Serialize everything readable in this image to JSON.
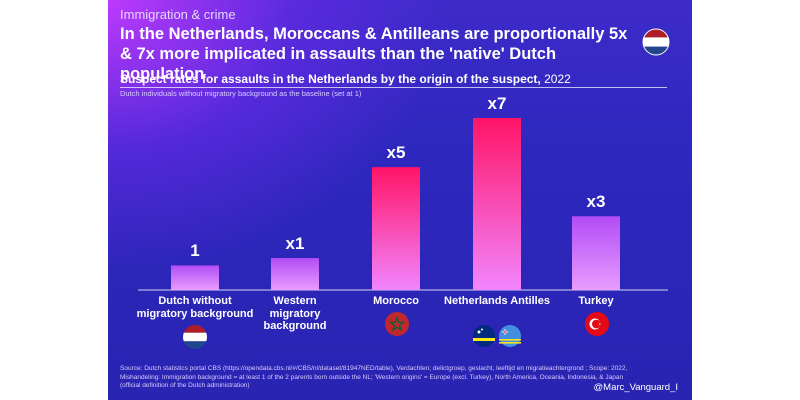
{
  "header": {
    "kicker": "Immigration & crime",
    "headline": "In the Netherlands, Moroccans & Antilleans are proportionally 5x & 7x more implicated in assaults than the 'native' Dutch population",
    "subtitle": "Suspect rates for assaults in the Netherlands by the origin of the suspect,",
    "subtitle_year": "2022",
    "baseline_note": "Dutch individuals without migratory background as the baseline (set at 1)"
  },
  "chart_data": {
    "type": "bar",
    "title": "Suspect rates for assaults in the Netherlands by the origin of the suspect, 2022",
    "categories": [
      "Dutch without migratory background",
      "Western migratory background",
      "Morocco",
      "Netherlands Antilles",
      "Turkey"
    ],
    "values": [
      1,
      1.3,
      5,
      7,
      3
    ],
    "value_labels": [
      "1",
      "x1",
      "x5",
      "x7",
      "x3"
    ],
    "ylim": [
      0,
      7
    ],
    "xlabel": "",
    "ylabel": "",
    "colors": {
      "low_top": "#b24cf5",
      "low_bottom": "#e79dff",
      "high_top": "#ff1466",
      "high_bottom": "#f285ff"
    }
  },
  "flags": [
    "netherlands-flag",
    "morocco-flag",
    "curacao-flag",
    "aruba-flag",
    "turkey-flag"
  ],
  "footer": {
    "source": "Source: Dutch statistics portal CBS (https://opendata.cbs.nl/#/CBS/nl/dataset/81947NED/table), Verdachten; delictgroep, geslacht, leeftijd en migratieachtergrond ; Scope: 2022, Mishandeling: Immigration background = at least 1 of the 2 parents born outside the NL; 'Western origins' = Europe (excl. Turkey), North America, Oceania, Indonesia, & Japan (official definition of the Dutch administration)",
    "credit": "@Marc_Vanguard_I"
  }
}
